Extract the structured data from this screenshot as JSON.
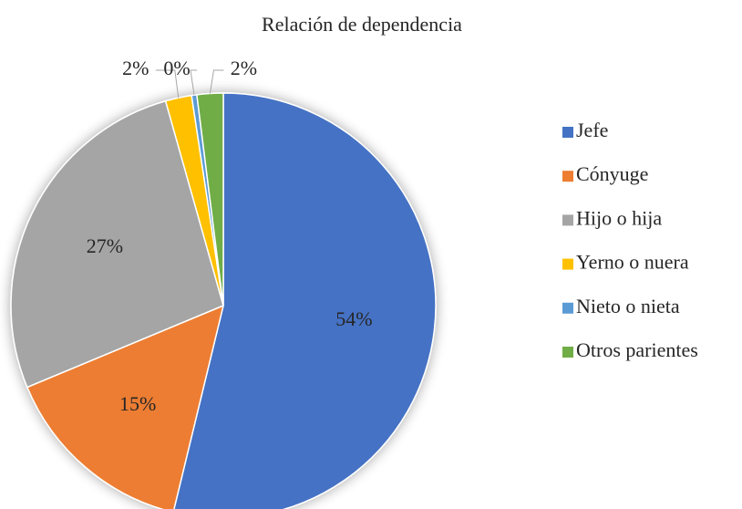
{
  "chart_data": {
    "type": "pie",
    "title": "Relación de dependencia",
    "categories": [
      "Jefe",
      "Cónyuge",
      "Hijo o hija",
      "Yerno o nuera",
      "Nieto o nieta",
      "Otros parientes"
    ],
    "values": [
      54,
      15,
      27,
      2,
      0.4,
      2
    ],
    "value_labels": [
      "54%",
      "15%",
      "27%",
      "2%",
      "0%",
      "2%"
    ],
    "colors": [
      "#4472c4",
      "#ed7d31",
      "#a5a5a5",
      "#ffc000",
      "#5b9bd5",
      "#70ad47"
    ],
    "legend": "right"
  }
}
